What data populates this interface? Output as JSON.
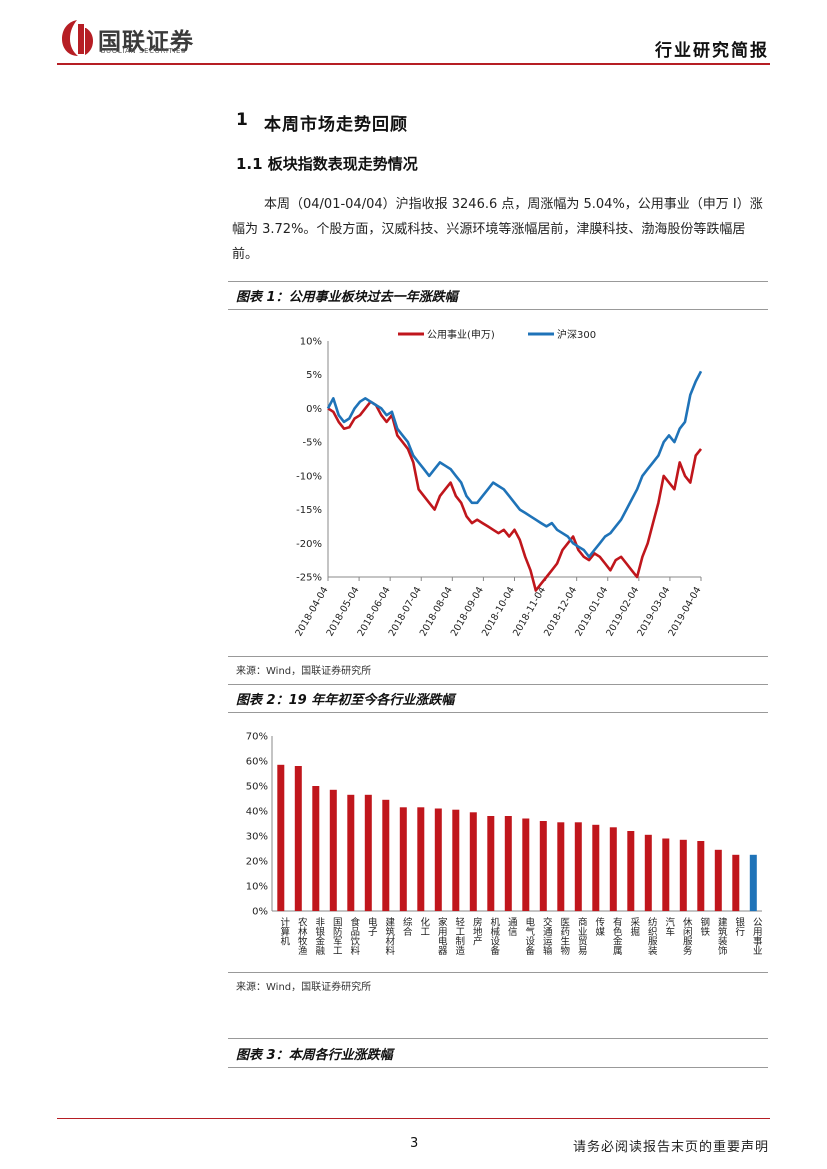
{
  "header": {
    "logo_cn": "国联证券",
    "logo_en": "GUOLIAN SECURITIES",
    "report_type": "行业研究简报",
    "colors": {
      "brand_red": "#b61e24"
    }
  },
  "section": {
    "number": "1",
    "title": "本周市场走势回顾",
    "subsection": "1.1 板块指数表现走势情况",
    "paragraph": "本周（04/01-04/04）沪指收报 3246.6 点，周涨幅为 5.04%，公用事业（申万 I）涨幅为 3.72%。个股方面，汉威科技、兴源环境等涨幅居前，津膜科技、渤海股份等跌幅居前。"
  },
  "figures": {
    "fig1_title": "图表 1：公用事业板块过去一年涨跌幅",
    "fig1_source": "来源：Wind，国联证券研究所",
    "fig2_title": "图表 2：19 年年初至今各行业涨跌幅",
    "fig2_source": "来源：Wind，国联证券研究所",
    "fig3_title": "图表 3：本周各行业涨跌幅"
  },
  "chart_data": [
    {
      "type": "line",
      "title": "公用事业板块过去一年涨跌幅",
      "ylim": [
        -25,
        10
      ],
      "yticks": [
        "10%",
        "5%",
        "0%",
        "-5%",
        "-10%",
        "-15%",
        "-20%",
        "-25%"
      ],
      "x_tick_labels": [
        "2018-04-04",
        "2018-05-04",
        "2018-06-04",
        "2018-07-04",
        "2018-08-04",
        "2018-09-04",
        "2018-10-04",
        "2018-11-04",
        "2018-12-04",
        "2019-01-04",
        "2019-02-04",
        "2019-03-04",
        "2019-04-04"
      ],
      "series": [
        {
          "name": "公用事业(申万)",
          "color": "#c0161c",
          "values": [
            0,
            -0.5,
            -2,
            -3,
            -2.8,
            -1.5,
            -1,
            0,
            1,
            0.5,
            -1,
            -2,
            -1,
            -4,
            -5,
            -6,
            -8,
            -12,
            -13,
            -14,
            -15,
            -13,
            -12,
            -11,
            -13,
            -14,
            -16,
            -17,
            -16.5,
            -17,
            -17.5,
            -18,
            -18.5,
            -18,
            -19,
            -18,
            -19.5,
            -22,
            -24,
            -27,
            -26,
            -25,
            -24,
            -23,
            -21,
            -20,
            -19,
            -21,
            -22,
            -22.5,
            -21.5,
            -22,
            -23,
            -24,
            -22.5,
            -22,
            -23,
            -24,
            -25,
            -22,
            -20,
            -17,
            -14,
            -10,
            -11,
            -12,
            -8,
            -10,
            -11,
            -7,
            -6
          ]
        },
        {
          "name": "沪深300",
          "color": "#1f73b8",
          "values": [
            0,
            1.5,
            -1,
            -2,
            -1.5,
            0,
            1,
            1.5,
            1,
            0.5,
            0,
            -1,
            -0.5,
            -3,
            -4,
            -5,
            -7,
            -8,
            -9,
            -10,
            -9,
            -8,
            -8.5,
            -9,
            -10,
            -11,
            -13,
            -14,
            -14,
            -13,
            -12,
            -11,
            -11.5,
            -12,
            -13,
            -14,
            -15,
            -15.5,
            -16,
            -16.5,
            -17,
            -17.5,
            -17,
            -18,
            -18.5,
            -19,
            -20,
            -20.5,
            -21,
            -22,
            -21,
            -20,
            -19,
            -18.5,
            -17.5,
            -16.5,
            -15,
            -13.5,
            -12,
            -10,
            -9,
            -8,
            -7,
            -5,
            -4,
            -5,
            -3,
            -2,
            2,
            4,
            5.5
          ]
        }
      ]
    },
    {
      "type": "bar",
      "title": "19 年年初至今各行业涨跌幅",
      "ylim": [
        0,
        70
      ],
      "yticks": [
        "70%",
        "60%",
        "50%",
        "40%",
        "30%",
        "20%",
        "10%",
        "0%"
      ],
      "categories": [
        "计算机",
        "农林牧渔",
        "非银金融",
        "国防军工",
        "食品饮料",
        "电子",
        "建筑材料",
        "综合",
        "化工",
        "家用电器",
        "轻工制造",
        "房地产",
        "机械设备",
        "通信",
        "电气设备",
        "交通运输",
        "医药生物",
        "商业贸易",
        "传媒",
        "有色金属",
        "采掘",
        "纺织服装",
        "汽车",
        "休闲服务",
        "钢铁",
        "建筑装饰",
        "银行",
        "公用事业"
      ],
      "values": [
        58.5,
        58,
        50,
        48.5,
        46.5,
        46.5,
        44.5,
        41.5,
        41.5,
        41,
        40.5,
        39.5,
        38,
        38,
        37,
        36,
        35.5,
        35.5,
        34.5,
        33.5,
        32,
        30.5,
        29,
        28.5,
        28,
        24.5,
        22.5,
        22.5
      ],
      "colors": {
        "default": "#c0161c",
        "highlight": "#1f73b8"
      },
      "highlight_category": "公用事业"
    }
  ],
  "footer": {
    "page_number": "3",
    "disclaimer": "请务必阅读报告末页的重要声明"
  }
}
